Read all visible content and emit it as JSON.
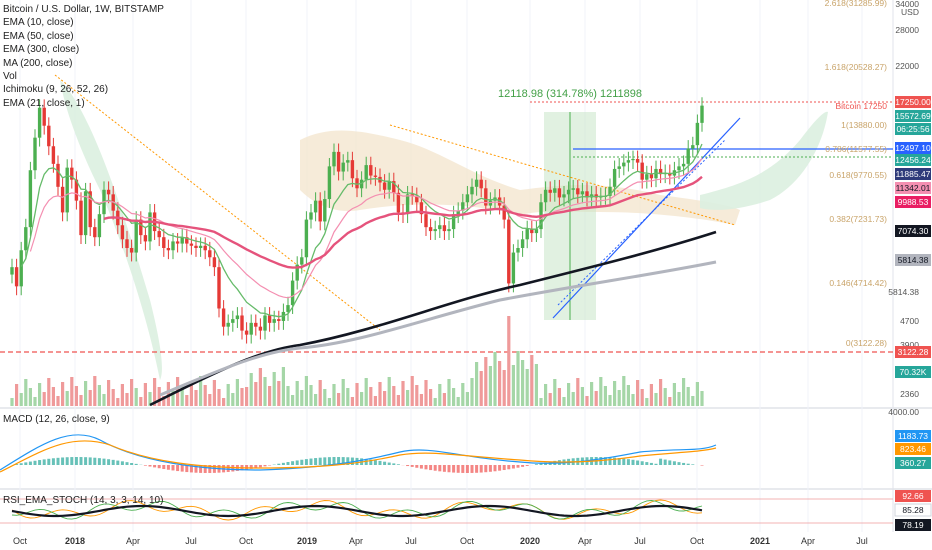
{
  "legend": {
    "title": "Bitcoin / U.S. Dollar, 1W, BITSTAMP",
    "indicators": [
      "EMA (10, close)",
      "EMA (50, close)",
      "EMA (300, close)",
      "MA (200, close)",
      "Vol",
      "Ichimoku (9, 26, 52, 26)",
      "EMA (21, close, 1)"
    ]
  },
  "currency": "USD",
  "macd_label": "MACD (12, 26, close, 9)",
  "rsi_label": "RSI_EMA_STOCH (14, 3, 3, 14, 10)",
  "measure_label": "12118.98 (314.78%) 1211898",
  "chart_data": {
    "type": "line",
    "title": "Bitcoin / U.S. Dollar, 1W, BITSTAMP",
    "price_scale": "log",
    "price_ticks": [
      34000,
      28000,
      22000,
      17250,
      15572.69,
      12497.1,
      12456.24,
      11885.47,
      11342.01,
      9988.53,
      7074.3,
      5814.38,
      4700,
      3900,
      3200,
      3122.28,
      70.32,
      2360
    ],
    "time_labels": [
      "Oct",
      "2018",
      "Apr",
      "Jul",
      "Oct",
      "2019",
      "Apr",
      "Jul",
      "Oct",
      "2020",
      "Apr",
      "Jul",
      "Oct",
      "2021",
      "Apr",
      "Jul"
    ],
    "fib_levels": [
      {
        "label": "2.618(31285.99)",
        "value": 31285.99
      },
      {
        "label": "1.618(20528.27)",
        "value": 20528.27
      },
      {
        "label": "1(13880.00)",
        "value": 13880.0
      },
      {
        "label": "0.786(11577.55)",
        "value": 11577.55
      },
      {
        "label": "0.618(9770.55)",
        "value": 9770.55
      },
      {
        "label": "0.382(7231.73)",
        "value": 7231.73
      },
      {
        "label": "0.146(4714.42)",
        "value": 4714.42
      },
      {
        "label": "0(3122.28)",
        "value": 3122.28
      }
    ],
    "badges": [
      {
        "text": "17250.00",
        "color": "#ef5350"
      },
      {
        "text": "15572.69",
        "color": "#26a69a"
      },
      {
        "text": "06:25:56",
        "color": "#26a69a"
      },
      {
        "text": "12497.10",
        "color": "#2962ff"
      },
      {
        "text": "12456.24",
        "color": "#26a69a"
      },
      {
        "text": "11885.47",
        "color": "#2e3a7a"
      },
      {
        "text": "11342.01",
        "color": "#f48fb1"
      },
      {
        "text": "9988.53",
        "color": "#e91e63"
      },
      {
        "text": "7074.30",
        "color": "#131722"
      },
      {
        "text": "5814.38",
        "color": "#b2b5be"
      },
      {
        "text": "3122.28",
        "color": "#ef5350"
      },
      {
        "text": "70.32K",
        "color": "#26a69a"
      }
    ],
    "price_tag": "Bitcoin 17250",
    "macd_ticks": [
      "4000.00"
    ],
    "macd_badges": [
      {
        "text": "1183.73",
        "color": "#2196f3"
      },
      {
        "text": "823.46",
        "color": "#ff9800"
      },
      {
        "text": "360.27",
        "color": "#26a69a"
      }
    ],
    "rsi_badges": [
      {
        "text": "92.66",
        "color": "#ef5350"
      },
      {
        "text": "85.28",
        "color": "#ffffff"
      },
      {
        "text": "78.19",
        "color": "#131722"
      }
    ],
    "closes": [
      5600,
      4900,
      6300,
      7400,
      11000,
      13800,
      17000,
      15000,
      13000,
      11500,
      9800,
      8200,
      11200,
      10300,
      8900,
      7000,
      9500,
      7400,
      6900,
      8100,
      9600,
      9300,
      8300,
      7500,
      6800,
      6400,
      6200,
      7800,
      7000,
      6700,
      8200,
      7200,
      6900,
      6400,
      6300,
      6700,
      6600,
      6900,
      6600,
      6500,
      6400,
      6500,
      6300,
      6000,
      5600,
      4200,
      3700,
      3800,
      3900,
      4000,
      3600,
      3500,
      3800,
      3700,
      3600,
      4000,
      3800,
      3900,
      3850,
      4100,
      4300,
      5100,
      5700,
      6000,
      7800,
      8200,
      8900,
      7700,
      9000,
      11300,
      12500,
      10900,
      11600,
      11800,
      10400,
      9700,
      10300,
      11400,
      10600,
      10500,
      10100,
      9600,
      10200,
      9400,
      8200,
      8100,
      9300,
      9200,
      8800,
      8100,
      7400,
      7200,
      7300,
      7500,
      7200,
      7300,
      8100,
      8300,
      8800,
      9300,
      9800,
      10300,
      9700,
      8600,
      8900,
      9100,
      8600,
      7800,
      5000,
      6200,
      6400,
      6800,
      7300,
      7100,
      7300,
      8800,
      9600,
      9400,
      9700,
      9100,
      9300,
      9600,
      9700,
      9300,
      9500,
      9100,
      9300,
      9100,
      9200,
      9200,
      9800,
      11100,
      11300,
      11600,
      11800,
      11900,
      11600,
      10300,
      10700,
      10400,
      11100,
      10700,
      10800,
      10600,
      11000,
      11300,
      11500,
      12800,
      13100,
      15300,
      17250
    ]
  }
}
